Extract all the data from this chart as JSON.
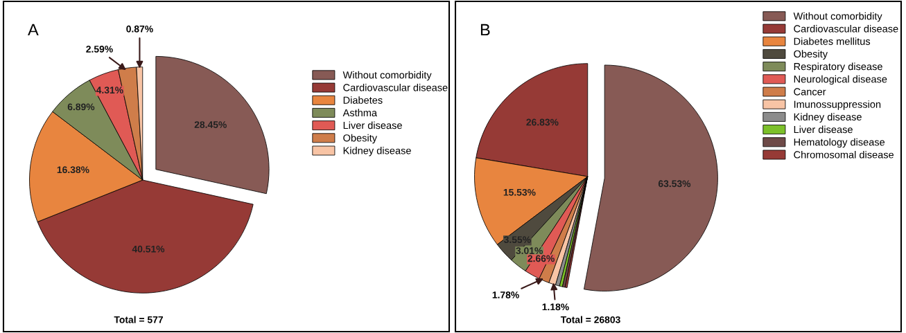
{
  "chart_data": [
    {
      "type": "pie",
      "title": "A",
      "categories": [
        "Without comorbidity",
        "Cardiovascular disease",
        "Diabetes",
        "Asthma",
        "Liver disease",
        "Obesity",
        "Kidney disease"
      ],
      "values": [
        28.45,
        40.51,
        16.38,
        6.89,
        4.31,
        2.59,
        0.87
      ],
      "colors": [
        "#875a55",
        "#963a36",
        "#e8853f",
        "#7e8b5a",
        "#e05a55",
        "#cf7d4a",
        "#f8c4a5"
      ],
      "value_labels": [
        "28.45%",
        "40.51%",
        "16.38%",
        "6.89%",
        "4.31%",
        "2.59%",
        "0.87%"
      ],
      "legend": "right",
      "annotations": [
        "Total = 577"
      ]
    },
    {
      "type": "pie",
      "title": "B",
      "categories": [
        "Without comorbidity",
        "Cardiovascular disease",
        "Diabetes mellitus",
        "Obesity",
        "Respiratory disease",
        "Neurological disease",
        "Cancer",
        "Imunossuppression",
        "Kidney disease",
        "Liver disease",
        "Hematology disease",
        "Chromosomal disease"
      ],
      "values": [
        63.53,
        26.83,
        15.53,
        3.55,
        3.01,
        2.66,
        1.78,
        1.18,
        0.7,
        0.5,
        0.45,
        0.35
      ],
      "colors": [
        "#875a55",
        "#963a36",
        "#e8853f",
        "#4f4a3e",
        "#7e8b5a",
        "#e05a55",
        "#cf7d4a",
        "#f8c4a5",
        "#8c8c8c",
        "#7cc02a",
        "#6e4a48",
        "#963a36"
      ],
      "value_labels": [
        "63.53%",
        "26.83%",
        "15.53%",
        "3.55%",
        "3.01%",
        "2.66%",
        "1.78%",
        "1.18%",
        null,
        null,
        null,
        null
      ],
      "legend": "top right",
      "annotations": [
        "Total = 26803"
      ]
    }
  ]
}
